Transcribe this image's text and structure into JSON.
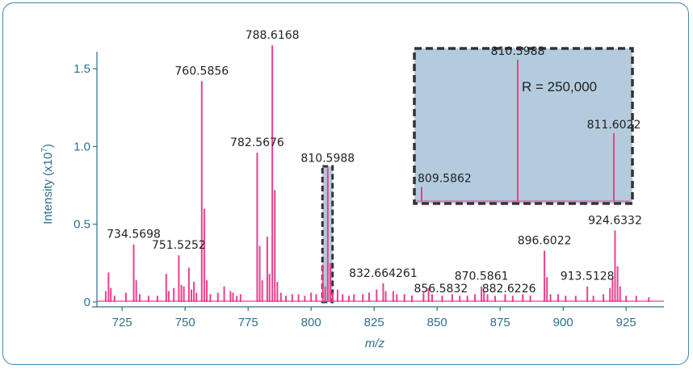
{
  "chart_data": {
    "type": "bar",
    "xlabel": "m/z",
    "ylabel": "Intensity (x10",
    "ylabel_sup": "7",
    "ylabel_end": ")",
    "xlim": [
      715,
      940
    ],
    "ylim": [
      0,
      1.62
    ],
    "xticks": [
      725,
      750,
      775,
      800,
      825,
      850,
      875,
      900,
      925
    ],
    "yticks": [
      {
        "v": 0,
        "label": "0"
      },
      {
        "v": 0.5,
        "label": "0.5"
      },
      {
        "v": 1.0,
        "label": "1.0"
      },
      {
        "v": 1.5,
        "label": "1.5"
      }
    ],
    "color": "#e8418f",
    "axis_color": "#2e6f8e",
    "peaks": [
      {
        "mz": 718.5,
        "intensity": 0.07
      },
      {
        "mz": 719.6,
        "intensity": 0.19
      },
      {
        "mz": 720.5,
        "intensity": 0.09
      },
      {
        "mz": 722,
        "intensity": 0.04
      },
      {
        "mz": 726.5,
        "intensity": 0.06
      },
      {
        "mz": 729.6,
        "intensity": 0.37
      },
      {
        "mz": 730.6,
        "intensity": 0.14
      },
      {
        "mz": 732,
        "intensity": 0.05
      },
      {
        "mz": 735.5,
        "intensity": 0.04
      },
      {
        "mz": 739,
        "intensity": 0.04
      },
      {
        "mz": 742.5,
        "intensity": 0.18
      },
      {
        "mz": 743.5,
        "intensity": 0.07
      },
      {
        "mz": 745.5,
        "intensity": 0.09
      },
      {
        "mz": 747.5,
        "intensity": 0.3
      },
      {
        "mz": 748.5,
        "intensity": 0.11
      },
      {
        "mz": 749.5,
        "intensity": 0.1
      },
      {
        "mz": 751.5,
        "intensity": 0.22
      },
      {
        "mz": 752.5,
        "intensity": 0.08
      },
      {
        "mz": 753.5,
        "intensity": 0.13
      },
      {
        "mz": 754.5,
        "intensity": 0.06
      },
      {
        "mz": 756.6,
        "intensity": 1.42
      },
      {
        "mz": 757.6,
        "intensity": 0.6
      },
      {
        "mz": 758.6,
        "intensity": 0.14
      },
      {
        "mz": 760,
        "intensity": 0.05
      },
      {
        "mz": 763,
        "intensity": 0.06
      },
      {
        "mz": 765.5,
        "intensity": 0.1
      },
      {
        "mz": 768,
        "intensity": 0.07
      },
      {
        "mz": 769,
        "intensity": 0.06
      },
      {
        "mz": 770.5,
        "intensity": 0.04
      },
      {
        "mz": 772,
        "intensity": 0.05
      },
      {
        "mz": 778.6,
        "intensity": 0.96
      },
      {
        "mz": 779.6,
        "intensity": 0.36
      },
      {
        "mz": 780.6,
        "intensity": 0.14
      },
      {
        "mz": 782.6,
        "intensity": 0.42
      },
      {
        "mz": 783.5,
        "intensity": 0.18
      },
      {
        "mz": 784.6,
        "intensity": 1.65
      },
      {
        "mz": 785.6,
        "intensity": 0.72
      },
      {
        "mz": 786.6,
        "intensity": 0.13
      },
      {
        "mz": 788,
        "intensity": 0.06
      },
      {
        "mz": 790,
        "intensity": 0.04
      },
      {
        "mz": 792.5,
        "intensity": 0.05
      },
      {
        "mz": 795,
        "intensity": 0.05
      },
      {
        "mz": 797.5,
        "intensity": 0.04
      },
      {
        "mz": 800,
        "intensity": 0.06
      },
      {
        "mz": 802,
        "intensity": 0.05
      },
      {
        "mz": 804.6,
        "intensity": 0.24
      },
      {
        "mz": 805.6,
        "intensity": 0.1
      },
      {
        "mz": 806.6,
        "intensity": 0.86
      },
      {
        "mz": 807.6,
        "intensity": 0.25
      },
      {
        "mz": 808.6,
        "intensity": 0.06
      },
      {
        "mz": 810.5,
        "intensity": 0.08
      },
      {
        "mz": 812.5,
        "intensity": 0.05
      },
      {
        "mz": 815,
        "intensity": 0.04
      },
      {
        "mz": 817,
        "intensity": 0.05
      },
      {
        "mz": 820.5,
        "intensity": 0.05
      },
      {
        "mz": 823,
        "intensity": 0.06
      },
      {
        "mz": 826,
        "intensity": 0.08
      },
      {
        "mz": 828.6,
        "intensity": 0.12
      },
      {
        "mz": 829.6,
        "intensity": 0.07
      },
      {
        "mz": 832.6,
        "intensity": 0.07
      },
      {
        "mz": 834,
        "intensity": 0.05
      },
      {
        "mz": 837,
        "intensity": 0.05
      },
      {
        "mz": 840,
        "intensity": 0.04
      },
      {
        "mz": 844.6,
        "intensity": 0.06
      },
      {
        "mz": 846.6,
        "intensity": 0.09
      },
      {
        "mz": 848,
        "intensity": 0.05
      },
      {
        "mz": 852,
        "intensity": 0.04
      },
      {
        "mz": 856,
        "intensity": 0.05
      },
      {
        "mz": 859,
        "intensity": 0.04
      },
      {
        "mz": 862,
        "intensity": 0.04
      },
      {
        "mz": 865,
        "intensity": 0.05
      },
      {
        "mz": 867.6,
        "intensity": 0.1
      },
      {
        "mz": 868.6,
        "intensity": 0.07
      },
      {
        "mz": 870,
        "intensity": 0.05
      },
      {
        "mz": 873,
        "intensity": 0.04
      },
      {
        "mz": 877,
        "intensity": 0.05
      },
      {
        "mz": 880,
        "intensity": 0.04
      },
      {
        "mz": 884,
        "intensity": 0.05
      },
      {
        "mz": 887,
        "intensity": 0.04
      },
      {
        "mz": 892.6,
        "intensity": 0.33
      },
      {
        "mz": 893.6,
        "intensity": 0.16
      },
      {
        "mz": 895,
        "intensity": 0.05
      },
      {
        "mz": 898,
        "intensity": 0.05
      },
      {
        "mz": 901,
        "intensity": 0.04
      },
      {
        "mz": 905,
        "intensity": 0.04
      },
      {
        "mz": 909.6,
        "intensity": 0.1
      },
      {
        "mz": 912,
        "intensity": 0.04
      },
      {
        "mz": 916,
        "intensity": 0.05
      },
      {
        "mz": 918.6,
        "intensity": 0.09
      },
      {
        "mz": 919.6,
        "intensity": 0.15
      },
      {
        "mz": 920.6,
        "intensity": 0.46
      },
      {
        "mz": 921.6,
        "intensity": 0.23
      },
      {
        "mz": 922.6,
        "intensity": 0.1
      },
      {
        "mz": 925,
        "intensity": 0.04
      },
      {
        "mz": 929,
        "intensity": 0.04
      },
      {
        "mz": 934,
        "intensity": 0.03
      }
    ],
    "annotations": [
      {
        "text": "788.6168",
        "mz": 784.6,
        "y": 1.65
      },
      {
        "text": "760.5856",
        "mz": 756.6,
        "y": 1.42
      },
      {
        "text": "782.5676",
        "mz": 778.6,
        "y": 0.96
      },
      {
        "text": "810.5988",
        "mz": 806.6,
        "y": 0.86
      },
      {
        "text": "734.5698",
        "mz": 729.6,
        "y": 0.37
      },
      {
        "text": "751.5252",
        "mz": 747.5,
        "y": 0.3
      },
      {
        "text": "832.664261",
        "mz": 828.6,
        "y": 0.12
      },
      {
        "text": "856.5832",
        "mz": 851.5,
        "y": 0.02
      },
      {
        "text": "870.5861",
        "mz": 867.6,
        "y": 0.1
      },
      {
        "text": "882.6226",
        "mz": 878.5,
        "y": 0.02
      },
      {
        "text": "896.6022",
        "mz": 892.6,
        "y": 0.33
      },
      {
        "text": "913.5128",
        "mz": 909.6,
        "y": 0.1
      },
      {
        "text": "924.6332",
        "mz": 920.6,
        "y": 0.46
      }
    ],
    "highlight": {
      "x_from": 804.5,
      "x_to": 808.5
    },
    "inset": {
      "fill": "#b3cbdd",
      "border_color": "#333333",
      "resolution_label": "R = 250,000",
      "peaks": [
        {
          "label": "809.5862",
          "intensity": 0.1
        },
        {
          "label": "810.5988",
          "intensity": 1.0
        },
        {
          "label": "811.6022",
          "intensity": 0.48
        }
      ]
    }
  }
}
